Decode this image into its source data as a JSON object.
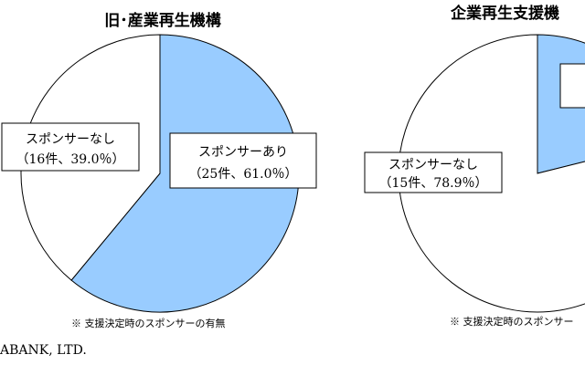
{
  "colors": {
    "highlight": "#99ccff",
    "plain": "#ffffff",
    "stroke": "#000000"
  },
  "footer": {
    "text": "ABANK, LTD."
  },
  "chart_data": [
    {
      "type": "pie",
      "title": "旧･産業再生機構",
      "note": "※ 支援決定時のスポンサーの有無",
      "slices": [
        {
          "label": "スポンサーあり",
          "detail": "（25件、61.0％）",
          "count": 25,
          "percent": 61.0
        },
        {
          "label": "スポンサーなし",
          "detail": "（16件、39.0％）",
          "count": 16,
          "percent": 39.0
        }
      ]
    },
    {
      "type": "pie",
      "title": "企業再生支援機",
      "note": "※ 支援決定時のスポンサー",
      "slices": [
        {
          "label": "",
          "detail": "",
          "percent": 21.1
        },
        {
          "label": "スポンサーなし",
          "detail": "（15件、78.9％）",
          "count": 15,
          "percent": 78.9
        }
      ]
    }
  ]
}
